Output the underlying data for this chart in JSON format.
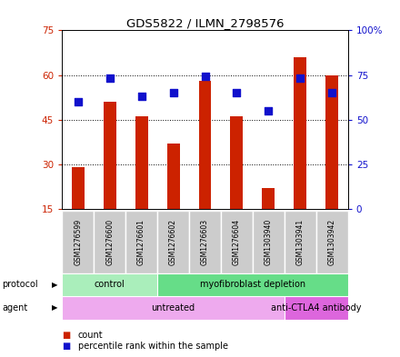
{
  "title": "GDS5822 / ILMN_2798576",
  "samples": [
    "GSM1276599",
    "GSM1276600",
    "GSM1276601",
    "GSM1276602",
    "GSM1276603",
    "GSM1276604",
    "GSM1303940",
    "GSM1303941",
    "GSM1303942"
  ],
  "counts": [
    29,
    51,
    46,
    37,
    58,
    46,
    22,
    66,
    60
  ],
  "percentiles": [
    60,
    73,
    63,
    65,
    74,
    65,
    55,
    73,
    65
  ],
  "ymin": 15,
  "ymax": 75,
  "yticks": [
    15,
    30,
    45,
    60,
    75
  ],
  "y2min": 0,
  "y2max": 100,
  "y2ticks": [
    0,
    25,
    50,
    75,
    100
  ],
  "bar_color": "#cc2200",
  "dot_color": "#1111cc",
  "protocol_labels": [
    {
      "text": "control",
      "start": 0,
      "end": 3
    },
    {
      "text": "myofibroblast depletion",
      "start": 3,
      "end": 9
    }
  ],
  "protocol_colors": [
    "#aaeebb",
    "#66dd88"
  ],
  "agent_labels": [
    {
      "text": "untreated",
      "start": 0,
      "end": 7
    },
    {
      "text": "anti-CTLA4 antibody",
      "start": 7,
      "end": 9
    }
  ],
  "agent_colors": [
    "#eeaaee",
    "#dd66dd"
  ],
  "legend_count_color": "#cc2200",
  "legend_dot_color": "#1111cc",
  "bar_width": 0.4,
  "dot_size": 30
}
